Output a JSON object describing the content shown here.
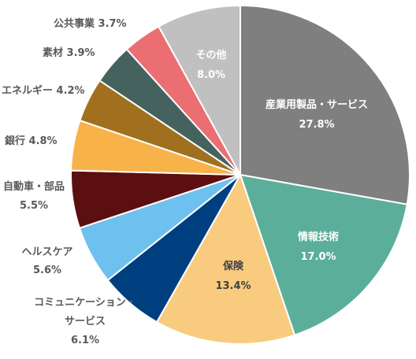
{
  "chart_data": {
    "type": "pie",
    "start": "12 o'clock",
    "direction": "clockwise",
    "grid": false,
    "legend": "none",
    "slices": [
      {
        "label": "産業用製品・サービス",
        "value": 27.8,
        "value_label": "27.8%",
        "color": "#7F7F7F",
        "label_color": "#FFFFFF"
      },
      {
        "label": "情報技術",
        "value": 17.0,
        "value_label": "17.0%",
        "color": "#5BAE9A",
        "label_color": "#FFFFFF"
      },
      {
        "label": "保険",
        "value": 13.4,
        "value_label": "13.4%",
        "color": "#F8CB7F",
        "label_color": "#404040"
      },
      {
        "label": "コミュニケーション・サービス",
        "value": 6.1,
        "value_label": "6.1%",
        "color": "#003F7F",
        "label_color": "#595959"
      },
      {
        "label": "ヘルスケア",
        "value": 5.6,
        "value_label": "5.6%",
        "color": "#6EC0EE",
        "label_color": "#595959"
      },
      {
        "label": "自動車・部品",
        "value": 5.5,
        "value_label": "5.5%",
        "color": "#5C0F10",
        "label_color": "#595959"
      },
      {
        "label": "銀行",
        "value": 4.8,
        "value_label": "4.8%",
        "color": "#F8B24A",
        "label_color": "#595959"
      },
      {
        "label": "エネルギー",
        "value": 4.2,
        "value_label": "4.2%",
        "color": "#A0701E",
        "label_color": "#595959"
      },
      {
        "label": "素材",
        "value": 3.9,
        "value_label": "3.9%",
        "color": "#46625F",
        "label_color": "#595959"
      },
      {
        "label": "公共事業",
        "value": 3.7,
        "value_label": "3.7%",
        "color": "#EA6E72",
        "label_color": "#595959"
      },
      {
        "label": "その他",
        "value": 8.0,
        "value_label": "8.0%",
        "color": "#C0C0C0",
        "label_color": "#FFFFFF"
      }
    ]
  }
}
